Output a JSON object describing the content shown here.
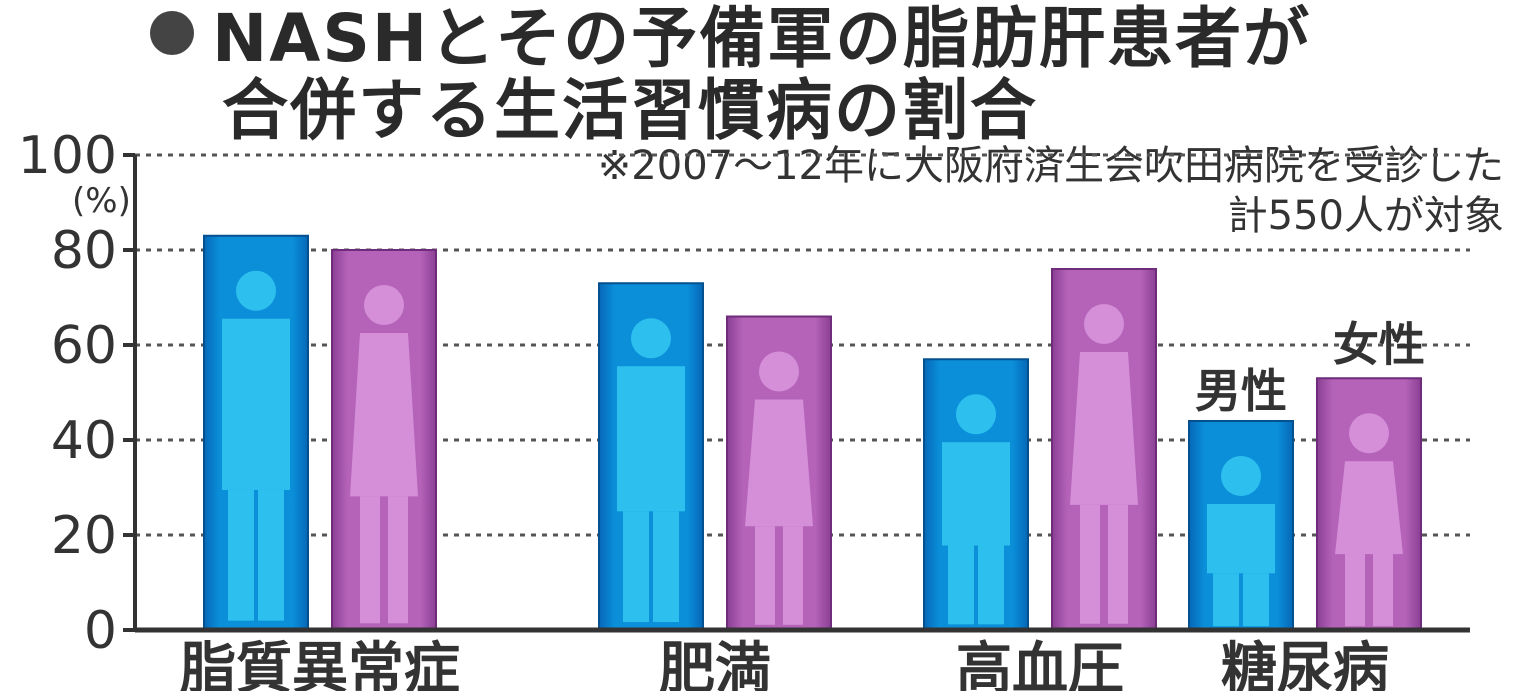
{
  "title": {
    "line1": "NASHとその予備軍の脂肪肝患者が",
    "line2": "合併する生活習慣病の割合"
  },
  "note": {
    "line1": "※2007～12年に大阪府済生会吹田病院を受診した",
    "line2": "計550人が対象"
  },
  "chart_data": {
    "type": "bar",
    "categories": [
      "脂質異常症",
      "肥満",
      "高血圧",
      "糖尿病"
    ],
    "series": [
      {
        "name": "男性",
        "values": [
          83,
          73,
          57,
          44
        ],
        "color": "#0a8fd8"
      },
      {
        "name": "女性",
        "values": [
          80,
          66,
          76,
          53
        ],
        "color": "#b463b8"
      }
    ],
    "ylabel": "(%)",
    "ylim": [
      0,
      100
    ],
    "yticks": [
      0,
      20,
      40,
      60,
      80,
      100
    ],
    "grid": true,
    "legend": "inline-above-last-group"
  }
}
